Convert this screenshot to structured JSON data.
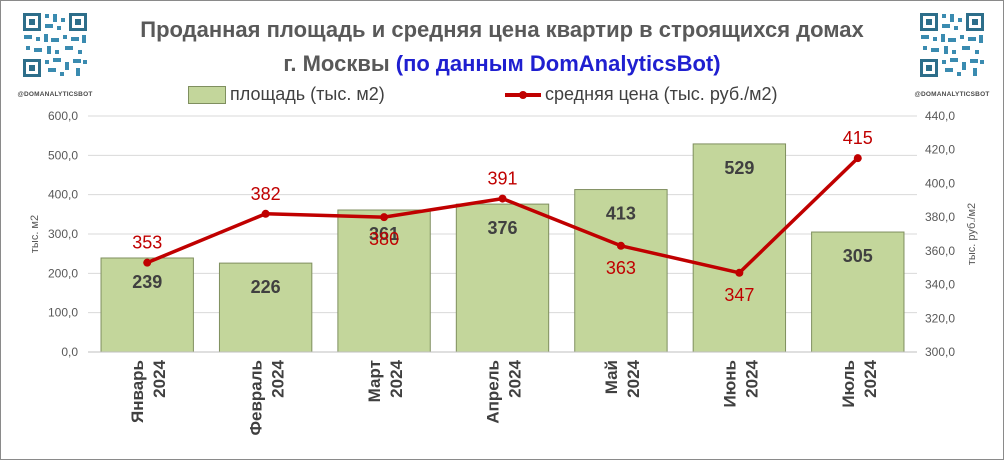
{
  "header": {
    "title_line1": "Проданная площадь и средняя цена квартир в строящихся домах",
    "title_line2_prefix": "г. Москвы",
    "title_line2_highlight": "(по данным DomAnalyticsBot)",
    "handle_left": "@DOMANALYTICSBOT",
    "handle_right": "@DOMANALYTICSBOT"
  },
  "colors": {
    "bar_fill": "#c3d69b",
    "bar_stroke": "#7f8f5f",
    "line": "#c00000",
    "title": "#595959",
    "highlight": "#1f1fd0"
  },
  "chart_data": {
    "type": "bar",
    "categories": [
      [
        "Январь",
        "2024"
      ],
      [
        "Февраль",
        "2024"
      ],
      [
        "Март",
        "2024"
      ],
      [
        "Апрель",
        "2024"
      ],
      [
        "Май",
        "2024"
      ],
      [
        "Июнь",
        "2024"
      ],
      [
        "Июль",
        "2024"
      ]
    ],
    "series": [
      {
        "name": "площадь (тыс. м2)",
        "type": "bar",
        "axis": "left",
        "values": [
          239,
          226,
          361,
          376,
          413,
          529,
          305
        ]
      },
      {
        "name": "средняя цена (тыс. руб./м2)",
        "type": "line",
        "axis": "right",
        "values": [
          353,
          382,
          380,
          391,
          363,
          347,
          415
        ]
      }
    ],
    "y_left": {
      "label": "тыс. м2",
      "lim": [
        0,
        600
      ],
      "ticks": [
        "0,0",
        "100,0",
        "200,0",
        "300,0",
        "400,0",
        "500,0",
        "600,0"
      ]
    },
    "y_right": {
      "label": "тыс. руб./м2",
      "lim": [
        300,
        440
      ],
      "ticks": [
        "300,0",
        "320,0",
        "340,0",
        "360,0",
        "380,0",
        "400,0",
        "420,0",
        "440,0"
      ]
    },
    "grid": true,
    "legend": "top"
  }
}
